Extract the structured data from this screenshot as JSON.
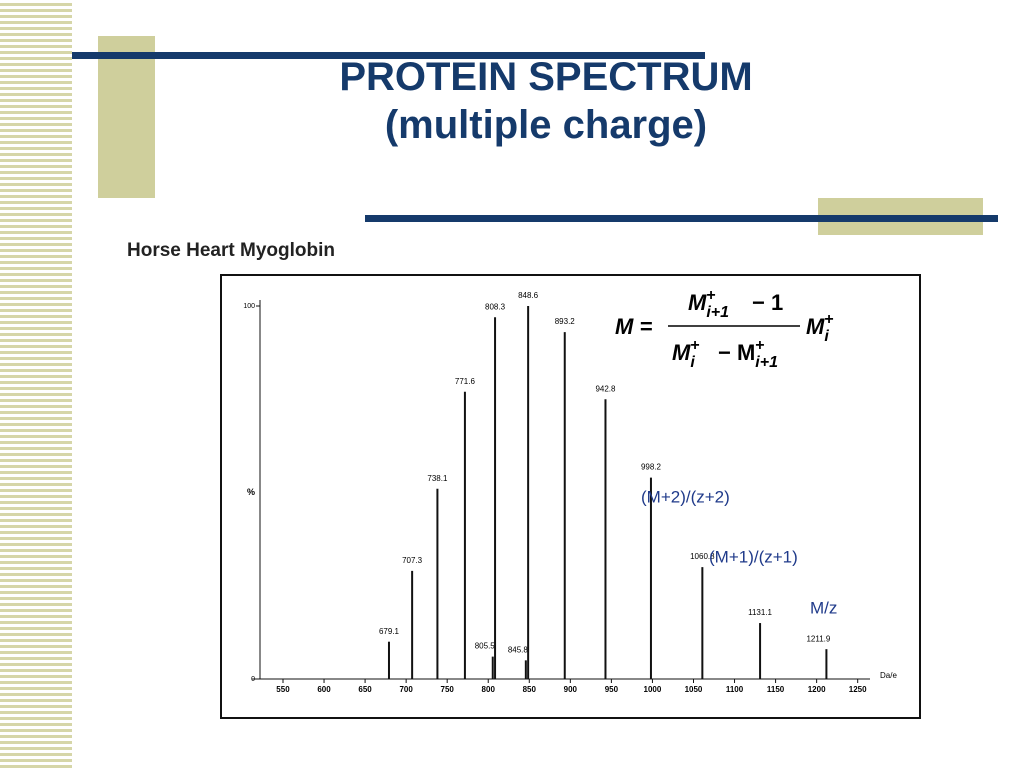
{
  "slide": {
    "title": "PROTEIN SPECTRUM",
    "subtitle": "(multiple charge)"
  },
  "formula": {
    "lhs": "M =",
    "numerator": [
      {
        "t": "M",
        "sup": "+",
        "sub": "i+1"
      },
      {
        "t": "− 1"
      }
    ],
    "denominator": [
      {
        "t": "M",
        "sup": "+",
        "sub": "i"
      },
      {
        "t": "− M",
        "sup": "+",
        "sub": "i+1"
      }
    ],
    "factor": [
      {
        "t": "M",
        "sup": "+",
        "sub": "i"
      }
    ]
  },
  "chart_data": {
    "type": "spectrum",
    "title": "Horse Heart Myoglobin",
    "x_label": "Da/e",
    "y_label": "%",
    "x": [
      679.1,
      707.3,
      738.1,
      771.6,
      805.5,
      808.3,
      845.8,
      848.6,
      893.2,
      942.8,
      998.2,
      1060.8,
      1131.1,
      1211.9
    ],
    "values": [
      10,
      29,
      51,
      77,
      6,
      97,
      5,
      100,
      93,
      75,
      54,
      30,
      15,
      8
    ],
    "color": "#111111",
    "xlim": [
      522,
      1265
    ],
    "ylim": [
      0,
      100
    ],
    "xticks": [
      550,
      600,
      650,
      700,
      750,
      800,
      850,
      900,
      950,
      1000,
      1050,
      1100,
      1150,
      1200,
      1250
    ],
    "yticks": [
      0,
      100
    ],
    "annotations": [
      "(M+2)/(z+2)",
      "(M+1)/(z+1)",
      "M/z"
    ]
  }
}
